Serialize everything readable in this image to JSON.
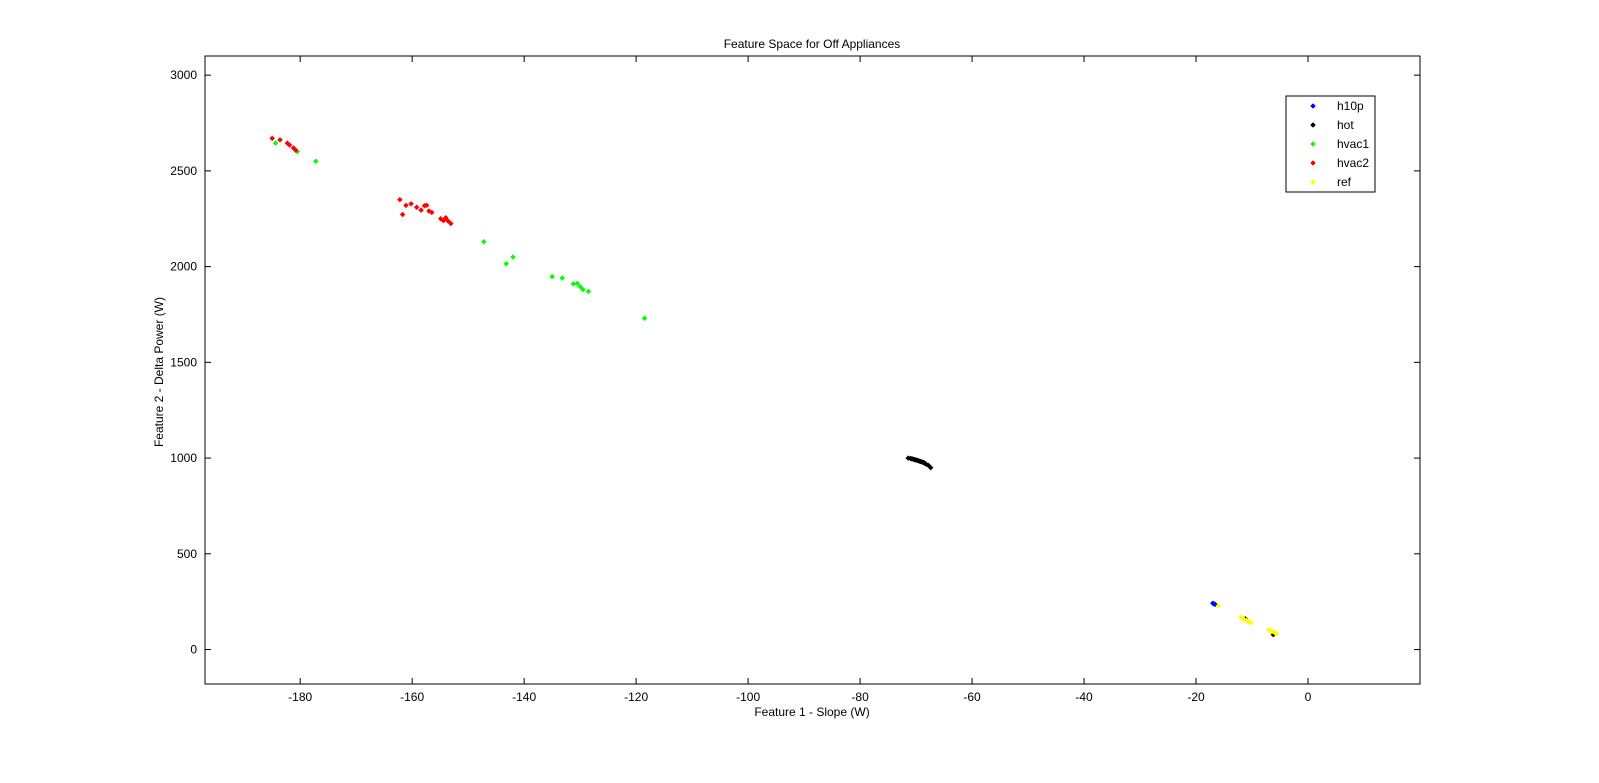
{
  "chart_data": {
    "type": "scatter",
    "title": "Feature Space for Off Appliances",
    "xlabel": "Feature 1 - Slope (W)",
    "ylabel": "Feature 2 - Delta Power (W)",
    "xlim": [
      -197,
      20
    ],
    "ylim": [
      -180,
      3100
    ],
    "xticks": [
      -180,
      -160,
      -140,
      -120,
      -100,
      -80,
      -60,
      -40,
      -20,
      0
    ],
    "yticks": [
      0,
      500,
      1000,
      1500,
      2000,
      2500,
      3000
    ],
    "grid": false,
    "legend_position": "top-right",
    "series": [
      {
        "name": "h10p",
        "color": "#0000ff",
        "points": [
          [
            -17.0,
            242
          ],
          [
            -16.8,
            238
          ],
          [
            -16.6,
            236
          ]
        ]
      },
      {
        "name": "hot",
        "color": "#000000",
        "points": [
          [
            -71.4,
            1000
          ],
          [
            -71.0,
            998
          ],
          [
            -70.8,
            996
          ],
          [
            -70.6,
            995
          ],
          [
            -70.4,
            993
          ],
          [
            -70.2,
            991
          ],
          [
            -70.0,
            990
          ],
          [
            -69.8,
            988
          ],
          [
            -69.6,
            986
          ],
          [
            -69.4,
            984
          ],
          [
            -69.2,
            982
          ],
          [
            -69.0,
            980
          ],
          [
            -68.8,
            978
          ],
          [
            -68.6,
            976
          ],
          [
            -68.4,
            972
          ],
          [
            -68.2,
            968
          ],
          [
            -67.8,
            962
          ],
          [
            -67.4,
            950
          ],
          [
            -11.2,
            160
          ],
          [
            -6.2,
            78
          ]
        ]
      },
      {
        "name": "hvac1",
        "color": "#00ff00",
        "points": [
          [
            -184.4,
            2645
          ],
          [
            -180.5,
            2600
          ],
          [
            -177.2,
            2550
          ],
          [
            -147.2,
            2130
          ],
          [
            -143.2,
            2015
          ],
          [
            -142.0,
            2050
          ],
          [
            -135.0,
            1948
          ],
          [
            -133.2,
            1940
          ],
          [
            -131.2,
            1910
          ],
          [
            -130.5,
            1912
          ],
          [
            -130.0,
            1895
          ],
          [
            -129.5,
            1880
          ],
          [
            -128.5,
            1870
          ],
          [
            -118.5,
            1730
          ]
        ]
      },
      {
        "name": "hvac2",
        "color": "#ff0000",
        "points": [
          [
            -185.0,
            2670
          ],
          [
            -183.6,
            2662
          ],
          [
            -182.3,
            2645
          ],
          [
            -181.9,
            2635
          ],
          [
            -181.2,
            2620
          ],
          [
            -180.8,
            2608
          ],
          [
            -162.2,
            2350
          ],
          [
            -161.7,
            2272
          ],
          [
            -161.1,
            2320
          ],
          [
            -160.2,
            2328
          ],
          [
            -159.2,
            2310
          ],
          [
            -158.4,
            2295
          ],
          [
            -157.8,
            2318
          ],
          [
            -157.4,
            2320
          ],
          [
            -157.0,
            2290
          ],
          [
            -156.5,
            2283
          ],
          [
            -154.9,
            2250
          ],
          [
            -154.4,
            2240
          ],
          [
            -154.0,
            2255
          ],
          [
            -153.6,
            2238
          ],
          [
            -153.1,
            2225
          ]
        ]
      },
      {
        "name": "ref",
        "color": "#ffff00",
        "points": [
          [
            -16.0,
            228
          ],
          [
            -12.0,
            168
          ],
          [
            -11.6,
            162
          ],
          [
            -11.0,
            152
          ],
          [
            -10.6,
            148
          ],
          [
            -10.2,
            140
          ],
          [
            -7.0,
            102
          ],
          [
            -6.6,
            98
          ],
          [
            -6.4,
            95
          ],
          [
            -6.0,
            90
          ],
          [
            -5.8,
            86
          ],
          [
            -5.6,
            82
          ]
        ]
      }
    ]
  }
}
